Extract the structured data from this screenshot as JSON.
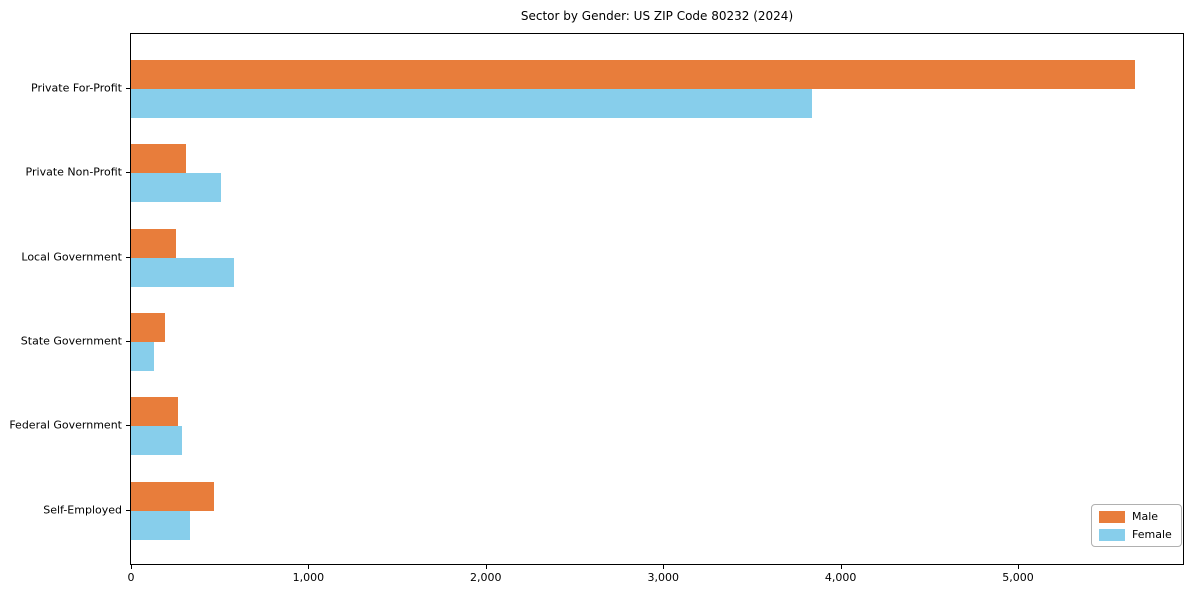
{
  "chart_data": {
    "type": "bar",
    "orientation": "horizontal",
    "title": "Sector by Gender: US ZIP Code 80232 (2024)",
    "xlabel": "",
    "ylabel": "",
    "categories": [
      "Private For-Profit",
      "Private Non-Profit",
      "Local Government",
      "State Government",
      "Federal Government",
      "Self-Employed"
    ],
    "series": [
      {
        "name": "Male",
        "color": "#E87D3B",
        "values": [
          5660,
          308,
          252,
          192,
          267,
          467
        ]
      },
      {
        "name": "Female",
        "color": "#87CEEB",
        "values": [
          3840,
          508,
          579,
          127,
          286,
          332
        ]
      }
    ],
    "xlim": [
      0,
      5930
    ],
    "xticks": [
      {
        "value": 0,
        "label": "0"
      },
      {
        "value": 1000,
        "label": "1,000"
      },
      {
        "value": 2000,
        "label": "2,000"
      },
      {
        "value": 3000,
        "label": "3,000"
      },
      {
        "value": 4000,
        "label": "4,000"
      },
      {
        "value": 5000,
        "label": "5,000"
      }
    ],
    "grid": false,
    "legend_position": "lower right"
  }
}
